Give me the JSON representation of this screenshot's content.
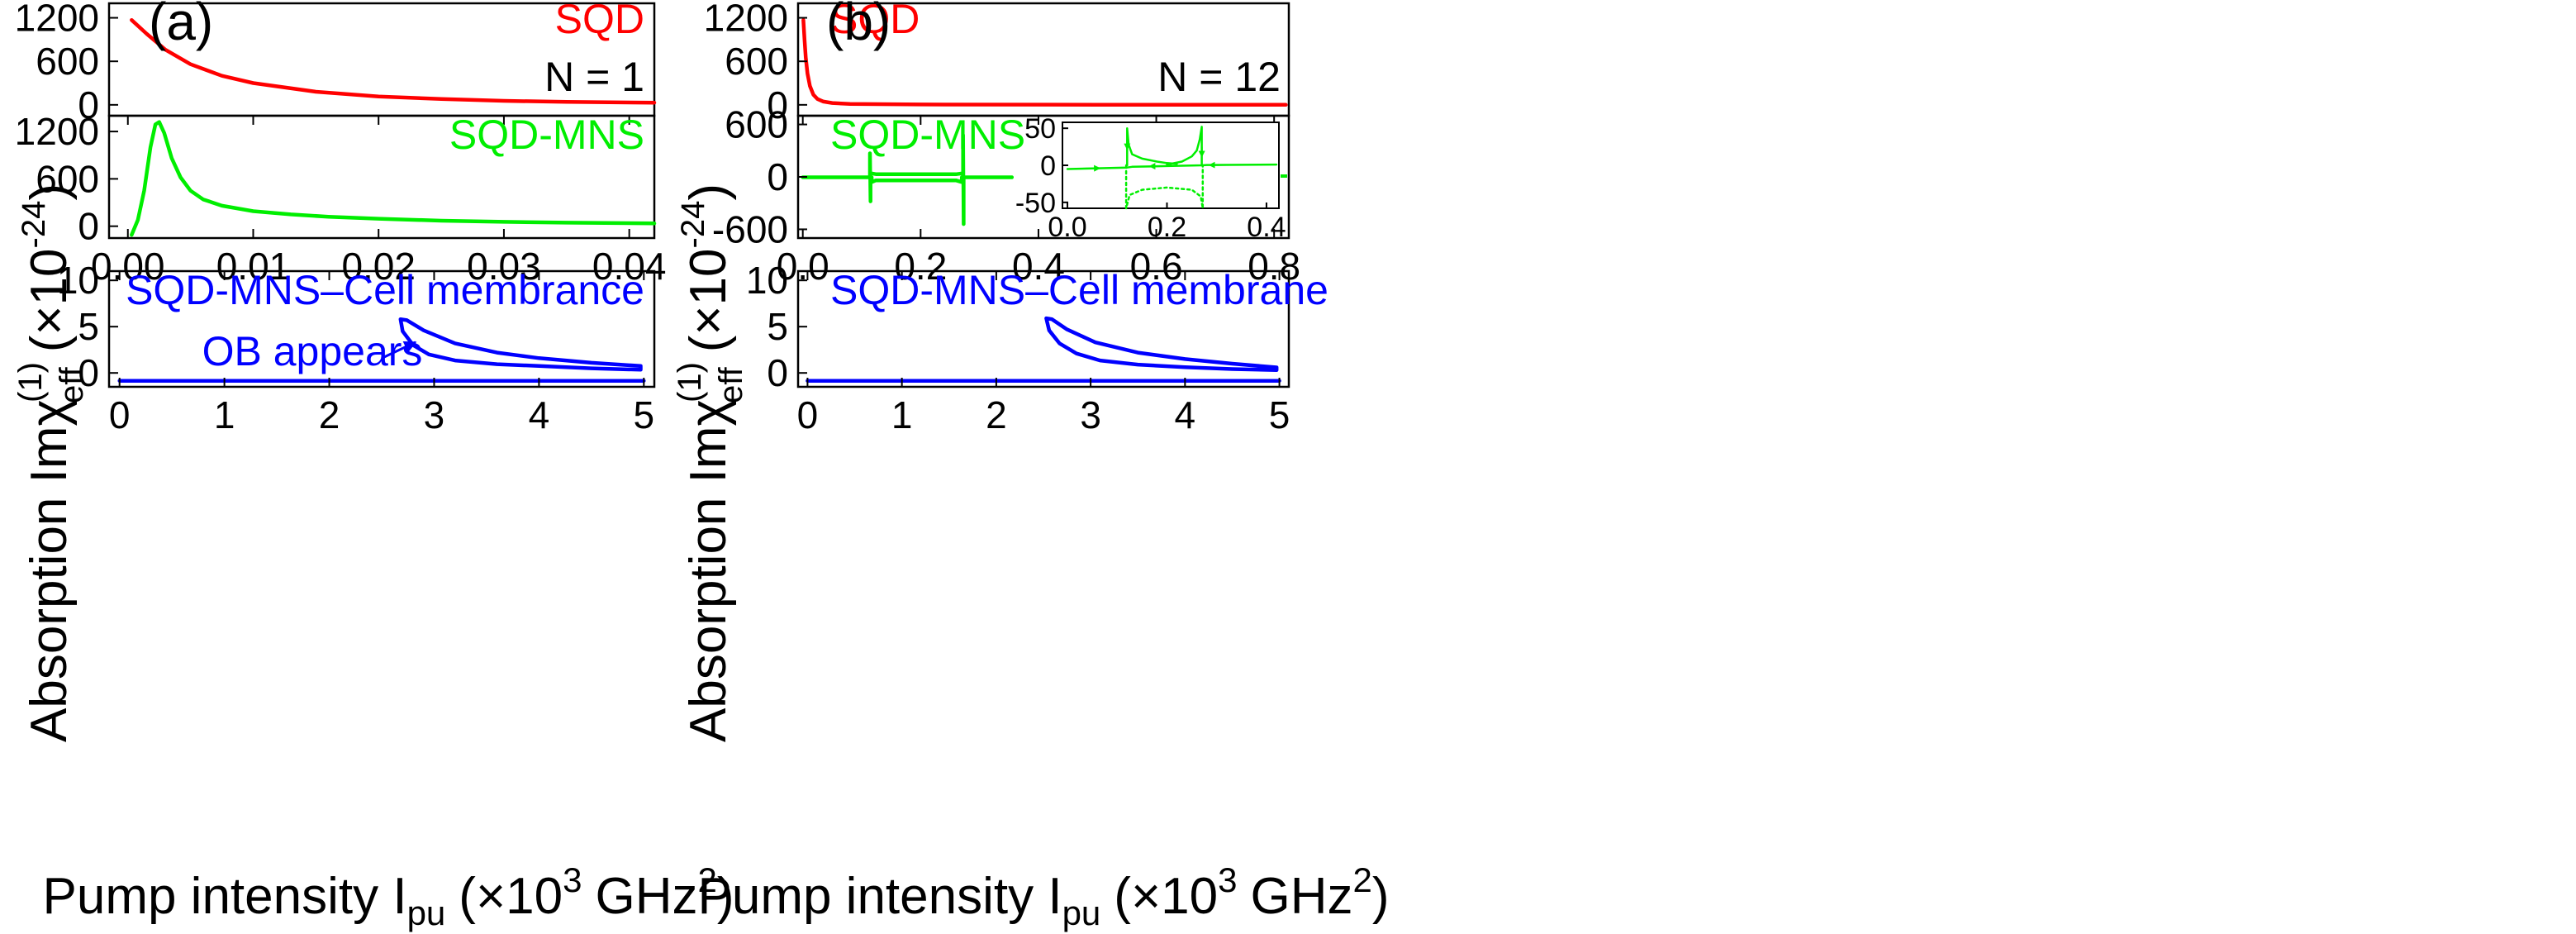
{
  "figure": {
    "ylabel_prefix": "Absorption Im",
    "ylabel_chi": "χ",
    "ylabel_sup": "(1)",
    "ylabel_sub": "eff",
    "ylabel_unit_open": "(×10",
    "ylabel_unit_exp": "-24",
    "ylabel_unit_close": ")",
    "xlabel_prefix": "Pump intensity I",
    "xlabel_sub": "pu",
    "xlabel_unit_open": "(×10",
    "xlabel_unit_exp": "3",
    "xlabel_unit_mid": "GHz",
    "xlabel_unit_exp2": "2",
    "xlabel_unit_close": ")"
  },
  "colors": {
    "sqd": "#ff0000",
    "sqd_mns": "#00ee00",
    "cell": "#0000ff",
    "axis": "#000000"
  },
  "chart_data": [
    {
      "id": "a-sqd",
      "panel": "(a)",
      "type": "line",
      "series_label": "SQD",
      "annotation": "N = 1",
      "xlim": [
        -0.0015,
        0.042
      ],
      "ylim": [
        -150,
        1400
      ],
      "yticks": [
        "0",
        "600",
        "1200"
      ],
      "ytick_values": [
        0,
        600,
        1200
      ],
      "xticks": [],
      "series": [
        {
          "name": "SQD",
          "color": "sqd",
          "x": [
            0.0003,
            0.0015,
            0.003,
            0.005,
            0.0075,
            0.01,
            0.015,
            0.02,
            0.025,
            0.03,
            0.035,
            0.042
          ],
          "y": [
            1170,
            980,
            760,
            560,
            400,
            300,
            180,
            115,
            80,
            55,
            40,
            30
          ]
        }
      ]
    },
    {
      "id": "a-mns",
      "panel": "(a)",
      "type": "line",
      "series_label": "SQD-MNS",
      "xlim": [
        -0.0015,
        0.042
      ],
      "ylim": [
        -150,
        1400
      ],
      "yticks": [
        "0",
        "600",
        "1200"
      ],
      "ytick_values": [
        0,
        600,
        1200
      ],
      "xticks": [
        "0.00",
        "0.01",
        "0.02",
        "0.03",
        "0.04"
      ],
      "xtick_values": [
        0,
        0.01,
        0.02,
        0.03,
        0.04
      ],
      "series": [
        {
          "name": "SQD-MNS",
          "color": "sqd_mns",
          "x": [
            0.0003,
            0.0008,
            0.0013,
            0.0018,
            0.0022,
            0.0025,
            0.0029,
            0.0035,
            0.0042,
            0.005,
            0.006,
            0.0075,
            0.01,
            0.013,
            0.016,
            0.02,
            0.025,
            0.03,
            0.035,
            0.042
          ],
          "y": [
            -110,
            80,
            450,
            1000,
            1290,
            1320,
            1180,
            860,
            620,
            450,
            340,
            260,
            190,
            150,
            120,
            95,
            70,
            55,
            45,
            35
          ]
        }
      ]
    },
    {
      "id": "a-cell",
      "panel": "(a)",
      "type": "line",
      "series_label": "SQD-MNS–Cell membrance",
      "annotation": "OB appears",
      "xlim": [
        -0.1,
        5.1
      ],
      "ylim": [
        -1.5,
        11
      ],
      "yticks": [
        "0",
        "5",
        "10"
      ],
      "ytick_values": [
        0,
        5,
        10
      ],
      "xticks": [
        "0",
        "1",
        "2",
        "3",
        "4",
        "5"
      ],
      "xtick_values": [
        0,
        1,
        2,
        3,
        4,
        5
      ],
      "series": [
        {
          "name": "lower branch",
          "color": "cell",
          "x": [
            0,
            5
          ],
          "y": [
            -0.85,
            -0.85
          ]
        },
        {
          "name": "OB loop",
          "color": "cell",
          "x": [
            2.68,
            2.74,
            2.9,
            3.2,
            3.6,
            4.0,
            4.5,
            4.97,
            4.97,
            4.5,
            4.0,
            3.6,
            3.2,
            2.95,
            2.8,
            2.7,
            2.68
          ],
          "y": [
            5.8,
            5.7,
            4.6,
            3.2,
            2.2,
            1.6,
            1.1,
            0.75,
            0.35,
            0.5,
            0.75,
            0.95,
            1.35,
            2.0,
            3.0,
            4.5,
            5.8
          ]
        }
      ]
    },
    {
      "id": "b-sqd",
      "panel": "(b)",
      "type": "line",
      "series_label": "SQD",
      "annotation": "N = 12",
      "xlim": [
        -0.008,
        0.825
      ],
      "ylim": [
        -150,
        1400
      ],
      "yticks": [
        "0",
        "600",
        "1200"
      ],
      "ytick_values": [
        0,
        600,
        1200
      ],
      "xticks": [],
      "series": [
        {
          "name": "SQD",
          "color": "sqd",
          "x": [
            0.001,
            0.003,
            0.005,
            0.008,
            0.012,
            0.018,
            0.025,
            0.035,
            0.05,
            0.08,
            0.2,
            0.5,
            0.82
          ],
          "y": [
            1170,
            900,
            650,
            430,
            260,
            140,
            80,
            45,
            25,
            12,
            5,
            2,
            1
          ]
        }
      ]
    },
    {
      "id": "b-mns",
      "panel": "(b)",
      "type": "line",
      "series_label": "SQD-MNS",
      "xlim": [
        -0.008,
        0.825
      ],
      "ylim": [
        -700,
        700
      ],
      "yticks": [
        "-600",
        "0",
        "600"
      ],
      "ytick_values": [
        -600,
        0,
        600
      ],
      "xticks": [
        "0.0",
        "0.2",
        "0.4",
        "0.6",
        "0.8"
      ],
      "xtick_values": [
        0,
        0.2,
        0.4,
        0.6,
        0.8
      ],
      "series": [
        {
          "name": "baseline",
          "color": "sqd_mns",
          "x": [
            0,
            0.117,
            0.117,
            0.124,
            0.26,
            0.27,
            0.27,
            0.355
          ],
          "y": [
            -5,
            -5,
            -60,
            -40,
            -40,
            -60,
            -5,
            -5
          ]
        },
        {
          "name": "upper band",
          "color": "sqd_mns",
          "x": [
            0.117,
            0.125,
            0.26,
            0.27
          ],
          "y": [
            40,
            30,
            30,
            40
          ]
        },
        {
          "name": "spike 1",
          "color": "sqd_mns",
          "x": [
            0.114,
            0.114,
            0.115,
            0.115
          ],
          "y": [
            0,
            270,
            -280,
            0
          ]
        },
        {
          "name": "spike 2",
          "color": "sqd_mns",
          "x": [
            0.272,
            0.272,
            0.273,
            0.273
          ],
          "y": [
            0,
            480,
            -540,
            0
          ]
        }
      ]
    },
    {
      "id": "b-inset",
      "panel": "(b)",
      "type": "line",
      "xlim": [
        -0.01,
        0.425
      ],
      "ylim": [
        -58,
        58
      ],
      "yticks": [
        "-50",
        "0",
        "50"
      ],
      "ytick_values": [
        -50,
        0,
        50
      ],
      "xticks": [
        "0.0",
        "0.2",
        "0.4"
      ],
      "xtick_values": [
        0,
        0.2,
        0.4
      ],
      "series": [
        {
          "name": "stable",
          "color": "sqd_mns",
          "x": [
            0,
            0.12,
            0.13,
            0.2,
            0.27,
            0.28,
            0.42
          ],
          "y": [
            -5,
            -3,
            -2,
            -1,
            0,
            0.5,
            1
          ]
        },
        {
          "name": "upper 1",
          "color": "sqd_mns",
          "x": [
            0.12,
            0.12,
            0.123,
            0.13,
            0.15,
            0.18,
            0.2,
            0.22
          ],
          "y": [
            0,
            50,
            28,
            15,
            9,
            5,
            3,
            2
          ]
        },
        {
          "name": "upper 2",
          "color": "sqd_mns",
          "x": [
            0.2,
            0.23,
            0.25,
            0.26,
            0.266,
            0.27,
            0.27
          ],
          "y": [
            1,
            5,
            12,
            20,
            35,
            52,
            0
          ]
        },
        {
          "name": "unstable",
          "color": "sqd_mns",
          "dashed": true,
          "x": [
            0.118,
            0.118,
            0.125,
            0.15,
            0.2,
            0.25,
            0.268,
            0.272,
            0.272
          ],
          "y": [
            0,
            -58,
            -40,
            -33,
            -30,
            -33,
            -42,
            -58,
            0
          ]
        }
      ]
    },
    {
      "id": "b-cell",
      "panel": "(b)",
      "type": "line",
      "series_label": "SQD-MNS–Cell membrane",
      "xlim": [
        -0.1,
        5.1
      ],
      "ylim": [
        -1.5,
        11
      ],
      "yticks": [
        "0",
        "5",
        "10"
      ],
      "ytick_values": [
        0,
        5,
        10
      ],
      "xticks": [
        "0",
        "1",
        "2",
        "3",
        "4",
        "5"
      ],
      "xtick_values": [
        0,
        1,
        2,
        3,
        4,
        5
      ],
      "series": [
        {
          "name": "lower branch",
          "color": "cell",
          "x": [
            0,
            5
          ],
          "y": [
            -0.85,
            -0.85
          ]
        },
        {
          "name": "OB loop",
          "color": "cell",
          "x": [
            2.53,
            2.59,
            2.75,
            3.05,
            3.5,
            4.0,
            4.5,
            4.97,
            4.97,
            4.5,
            4.0,
            3.5,
            3.1,
            2.85,
            2.67,
            2.56,
            2.53
          ],
          "y": [
            5.9,
            5.8,
            4.7,
            3.3,
            2.2,
            1.5,
            1.0,
            0.6,
            0.3,
            0.42,
            0.62,
            0.9,
            1.35,
            2.1,
            3.2,
            4.6,
            5.9
          ]
        }
      ]
    }
  ]
}
